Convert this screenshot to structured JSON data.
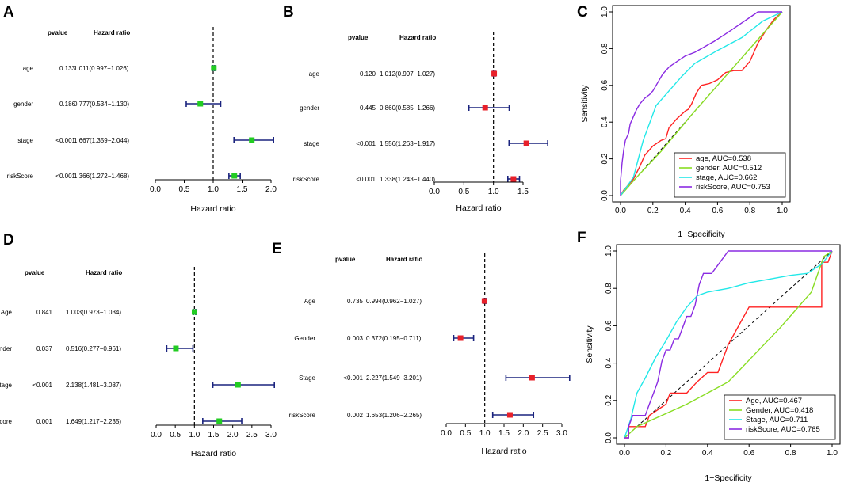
{
  "chart_data": [
    {
      "panel": "A",
      "type": "forest",
      "headers": {
        "pvalue": "pvalue",
        "hr": "Hazard ratio"
      },
      "rows": [
        {
          "var": "age",
          "pvalue": "0.133",
          "hr_text": "1.011(0.997−1.026)",
          "hr": 1.011,
          "lo": 0.997,
          "hi": 1.026
        },
        {
          "var": "gender",
          "pvalue": "0.186",
          "hr_text": "0.777(0.534−1.130)",
          "hr": 0.777,
          "lo": 0.534,
          "hi": 1.13
        },
        {
          "var": "stage",
          "pvalue": "<0.001",
          "hr_text": "1.667(1.359−2.044)",
          "hr": 1.667,
          "lo": 1.359,
          "hi": 2.044
        },
        {
          "var": "riskScore",
          "pvalue": "<0.001",
          "hr_text": "1.366(1.272−1.468)",
          "hr": 1.366,
          "lo": 1.272,
          "hi": 1.468
        }
      ],
      "xlim": [
        0,
        2.0
      ],
      "ticks": [
        "0.0",
        "0.5",
        "1.0",
        "1.5",
        "2.0"
      ],
      "xlabel": "Hazard ratio",
      "marker_color": "#22cc22"
    },
    {
      "panel": "B",
      "type": "forest",
      "headers": {
        "pvalue": "pvalue",
        "hr": "Hazard ratio"
      },
      "rows": [
        {
          "var": "age",
          "pvalue": "0.120",
          "hr_text": "1.012(0.997−1.027)",
          "hr": 1.012,
          "lo": 0.997,
          "hi": 1.027
        },
        {
          "var": "gender",
          "pvalue": "0.445",
          "hr_text": "0.860(0.585−1.266)",
          "hr": 0.86,
          "lo": 0.585,
          "hi": 1.266
        },
        {
          "var": "stage",
          "pvalue": "<0.001",
          "hr_text": "1.556(1.263−1.917)",
          "hr": 1.556,
          "lo": 1.263,
          "hi": 1.917
        },
        {
          "var": "riskScore",
          "pvalue": "<0.001",
          "hr_text": "1.338(1.243−1.440)",
          "hr": 1.338,
          "lo": 1.243,
          "hi": 1.44
        }
      ],
      "xlim": [
        0,
        1.5
      ],
      "ticks": [
        "0.0",
        "0.5",
        "1.0",
        "1.5"
      ],
      "xlabel": "Hazard ratio",
      "marker_color": "#e8202a"
    },
    {
      "panel": "C",
      "type": "line",
      "xlabel": "1−Specificity",
      "ylabel": "Sensitivity",
      "xlim": [
        0,
        1
      ],
      "ylim": [
        0,
        1
      ],
      "ticks": [
        "0.0",
        "0.2",
        "0.4",
        "0.6",
        "0.8",
        "1.0"
      ],
      "legend_position": "bottom-right",
      "series": [
        {
          "name": "age, AUC=0.538",
          "color": "#ff2222",
          "points": [
            [
              0,
              0
            ],
            [
              0.02,
              0.03
            ],
            [
              0.05,
              0.06
            ],
            [
              0.08,
              0.09
            ],
            [
              0.12,
              0.16
            ],
            [
              0.15,
              0.22
            ],
            [
              0.2,
              0.27
            ],
            [
              0.25,
              0.3
            ],
            [
              0.28,
              0.31
            ],
            [
              0.3,
              0.37
            ],
            [
              0.35,
              0.42
            ],
            [
              0.4,
              0.46
            ],
            [
              0.42,
              0.47
            ],
            [
              0.44,
              0.5
            ],
            [
              0.47,
              0.56
            ],
            [
              0.5,
              0.6
            ],
            [
              0.55,
              0.61
            ],
            [
              0.6,
              0.63
            ],
            [
              0.65,
              0.67
            ],
            [
              0.7,
              0.68
            ],
            [
              0.75,
              0.68
            ],
            [
              0.8,
              0.73
            ],
            [
              0.85,
              0.83
            ],
            [
              0.9,
              0.9
            ],
            [
              0.95,
              0.96
            ],
            [
              1,
              1
            ]
          ]
        },
        {
          "name": "gender, AUC=0.512",
          "color": "#88dd22",
          "points": [
            [
              0,
              0
            ],
            [
              0.1,
              0.1
            ],
            [
              0.25,
              0.24
            ],
            [
              0.45,
              0.45
            ],
            [
              0.6,
              0.6
            ],
            [
              0.8,
              0.8
            ],
            [
              1,
              1
            ]
          ]
        },
        {
          "name": "stage, AUC=0.662",
          "color": "#22e8e8",
          "points": [
            [
              0,
              0
            ],
            [
              0.04,
              0.05
            ],
            [
              0.08,
              0.1
            ],
            [
              0.14,
              0.3
            ],
            [
              0.22,
              0.49
            ],
            [
              0.3,
              0.57
            ],
            [
              0.38,
              0.65
            ],
            [
              0.46,
              0.72
            ],
            [
              0.6,
              0.79
            ],
            [
              0.75,
              0.86
            ],
            [
              0.88,
              0.95
            ],
            [
              1,
              1
            ]
          ]
        },
        {
          "name": "riskScore, AUC=0.753",
          "color": "#8a2be2",
          "points": [
            [
              0,
              0
            ],
            [
              0,
              0.08
            ],
            [
              0.01,
              0.18
            ],
            [
              0.02,
              0.25
            ],
            [
              0.03,
              0.3
            ],
            [
              0.05,
              0.34
            ],
            [
              0.06,
              0.39
            ],
            [
              0.08,
              0.43
            ],
            [
              0.1,
              0.47
            ],
            [
              0.12,
              0.5
            ],
            [
              0.15,
              0.53
            ],
            [
              0.18,
              0.55
            ],
            [
              0.2,
              0.57
            ],
            [
              0.22,
              0.6
            ],
            [
              0.24,
              0.63
            ],
            [
              0.26,
              0.66
            ],
            [
              0.3,
              0.7
            ],
            [
              0.35,
              0.73
            ],
            [
              0.4,
              0.76
            ],
            [
              0.46,
              0.78
            ],
            [
              0.5,
              0.8
            ],
            [
              0.58,
              0.84
            ],
            [
              0.65,
              0.88
            ],
            [
              0.7,
              0.91
            ],
            [
              0.75,
              0.94
            ],
            [
              0.8,
              0.97
            ],
            [
              0.85,
              1
            ],
            [
              0.95,
              1
            ],
            [
              1,
              1
            ]
          ]
        }
      ]
    },
    {
      "panel": "D",
      "type": "forest",
      "headers": {
        "pvalue": "pvalue",
        "hr": "Hazard ratio"
      },
      "rows": [
        {
          "var": "Age",
          "pvalue": "0.841",
          "hr_text": "1.003(0.973−1.034)",
          "hr": 1.003,
          "lo": 0.973,
          "hi": 1.034
        },
        {
          "var": "Gender",
          "pvalue": "0.037",
          "hr_text": "0.516(0.277−0.961)",
          "hr": 0.516,
          "lo": 0.277,
          "hi": 0.961
        },
        {
          "var": "Stage",
          "pvalue": "<0.001",
          "hr_text": "2.138(1.481−3.087)",
          "hr": 2.138,
          "lo": 1.481,
          "hi": 3.087
        },
        {
          "var": "riskScore",
          "pvalue": "0.001",
          "hr_text": "1.649(1.217−2.235)",
          "hr": 1.649,
          "lo": 1.217,
          "hi": 2.235
        }
      ],
      "xlim": [
        0,
        3.0
      ],
      "ticks": [
        "0.0",
        "0.5",
        "1.0",
        "1.5",
        "2.0",
        "2.5",
        "3.0"
      ],
      "xlabel": "Hazard ratio",
      "marker_color": "#22cc22"
    },
    {
      "panel": "E",
      "type": "forest",
      "headers": {
        "pvalue": "pvalue",
        "hr": "Hazard ratio"
      },
      "rows": [
        {
          "var": "Age",
          "pvalue": "0.735",
          "hr_text": "0.994(0.962−1.027)",
          "hr": 0.994,
          "lo": 0.962,
          "hi": 1.027
        },
        {
          "var": "Gender",
          "pvalue": "0.003",
          "hr_text": "0.372(0.195−0.711)",
          "hr": 0.372,
          "lo": 0.195,
          "hi": 0.711
        },
        {
          "var": "Stage",
          "pvalue": "<0.001",
          "hr_text": "2.227(1.549−3.201)",
          "hr": 2.227,
          "lo": 1.549,
          "hi": 3.201
        },
        {
          "var": "riskScore",
          "pvalue": "0.002",
          "hr_text": "1.653(1.206−2.265)",
          "hr": 1.653,
          "lo": 1.206,
          "hi": 2.265
        }
      ],
      "xlim": [
        0,
        3.0
      ],
      "ticks": [
        "0.0",
        "0.5",
        "1.0",
        "1.5",
        "2.0",
        "2.5",
        "3.0"
      ],
      "xlabel": "Hazard ratio",
      "marker_color": "#e8202a"
    },
    {
      "panel": "F",
      "type": "line",
      "xlabel": "1−Specificity",
      "ylabel": "Sensitivity",
      "xlim": [
        0,
        1
      ],
      "ylim": [
        0,
        1
      ],
      "ticks": [
        "0.0",
        "0.2",
        "0.4",
        "0.6",
        "0.8",
        "1.0"
      ],
      "legend_position": "bottom-right",
      "series": [
        {
          "name": "Age, AUC=0.467",
          "color": "#ff2222",
          "points": [
            [
              0,
              0
            ],
            [
              0.02,
              0
            ],
            [
              0.02,
              0.06
            ],
            [
              0.1,
              0.06
            ],
            [
              0.12,
              0.12
            ],
            [
              0.2,
              0.18
            ],
            [
              0.22,
              0.24
            ],
            [
              0.3,
              0.24
            ],
            [
              0.35,
              0.3
            ],
            [
              0.4,
              0.35
            ],
            [
              0.45,
              0.35
            ],
            [
              0.5,
              0.5
            ],
            [
              0.55,
              0.6
            ],
            [
              0.6,
              0.7
            ],
            [
              0.65,
              0.7
            ],
            [
              0.75,
              0.7
            ],
            [
              0.95,
              0.7
            ],
            [
              0.95,
              0.94
            ],
            [
              0.98,
              0.94
            ],
            [
              1,
              1
            ]
          ]
        },
        {
          "name": "Gender, AUC=0.418",
          "color": "#88dd22",
          "points": [
            [
              0,
              0
            ],
            [
              0.06,
              0.06
            ],
            [
              0.3,
              0.18
            ],
            [
              0.5,
              0.3
            ],
            [
              0.75,
              0.59
            ],
            [
              0.9,
              0.78
            ],
            [
              0.96,
              0.97
            ],
            [
              1,
              1
            ]
          ]
        },
        {
          "name": "Stage, AUC=0.711",
          "color": "#22e8e8",
          "points": [
            [
              0,
              0
            ],
            [
              0.03,
              0.1
            ],
            [
              0.06,
              0.24
            ],
            [
              0.1,
              0.32
            ],
            [
              0.15,
              0.43
            ],
            [
              0.2,
              0.52
            ],
            [
              0.25,
              0.62
            ],
            [
              0.3,
              0.7
            ],
            [
              0.35,
              0.76
            ],
            [
              0.4,
              0.78
            ],
            [
              0.5,
              0.8
            ],
            [
              0.6,
              0.83
            ],
            [
              0.7,
              0.85
            ],
            [
              0.8,
              0.87
            ],
            [
              0.88,
              0.88
            ],
            [
              0.95,
              0.93
            ],
            [
              1,
              1
            ]
          ]
        },
        {
          "name": "riskScore, AUC=0.765",
          "color": "#8a2be2",
          "points": [
            [
              0,
              0
            ],
            [
              0.02,
              0
            ],
            [
              0.02,
              0.06
            ],
            [
              0.04,
              0.12
            ],
            [
              0.1,
              0.12
            ],
            [
              0.12,
              0.18
            ],
            [
              0.14,
              0.24
            ],
            [
              0.16,
              0.3
            ],
            [
              0.18,
              0.41
            ],
            [
              0.2,
              0.47
            ],
            [
              0.22,
              0.47
            ],
            [
              0.24,
              0.53
            ],
            [
              0.26,
              0.53
            ],
            [
              0.28,
              0.59
            ],
            [
              0.3,
              0.65
            ],
            [
              0.32,
              0.65
            ],
            [
              0.34,
              0.71
            ],
            [
              0.36,
              0.82
            ],
            [
              0.38,
              0.88
            ],
            [
              0.42,
              0.88
            ],
            [
              0.46,
              0.94
            ],
            [
              0.5,
              1
            ],
            [
              1,
              1
            ]
          ]
        }
      ]
    }
  ]
}
